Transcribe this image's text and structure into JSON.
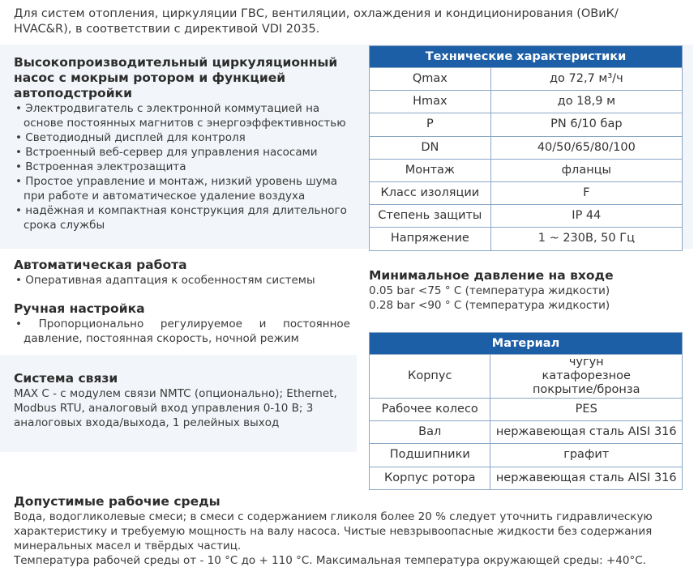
{
  "intro": "Для систем отопления, циркуляции ГВС, вентиляции, охлаждения и кондиционирования (ОВиК/ HVAC&R), в соответствии с директивой VDI 2035.",
  "features": {
    "title": "Высокопроизводительный циркуляционный насос с мокрым ротором и функцией автоподстройки",
    "items": [
      "Электродвигатель с электронной коммутацией на основе постоянных магнитов с энергоэффективностью",
      "Светодиодный дисплей для контроля",
      "Встроенный веб-сервер для управления насосами",
      "Встроенная электрозащита",
      "Простое управление и монтаж, низкий уровень шума при работе и автоматическое удаление воздуха",
      "надёжная и компактная конструкция для длительного срока службы"
    ]
  },
  "auto": {
    "title": "Автоматическая работа",
    "items": [
      "Оперативная адаптация к особенностям системы"
    ]
  },
  "manual": {
    "title": "Ручная настройка",
    "items": [
      "Пропорционально регулируемое и постоянное давление, постоянная скорость, ночной режим"
    ]
  },
  "comm": {
    "title": "Система связи",
    "text": "MAX C - с модулем связи NMTC (опционально); Ethernet, Modbus RTU, аналоговый вход управления 0-10 В; 3 аналоговых входа/выхода, 1 релейных выход"
  },
  "media": {
    "title": "Допустимые рабочие среды",
    "text": "Вода, водогликолевые смеси; в смеси с содержанием гликоля более 20 % следует уточнить гидравлическую характеристику и требуемую мощность на валу насоса. Чистые невзрывоопасные жидкости без содержания минеральных масел и твёрдых частиц.",
    "temp": "Температура рабочей среды от - 10 °C до + 110 °C. Максимальная температура окружающей среды: +40°C."
  },
  "tech": {
    "title": "Технические характеристики",
    "rows": [
      [
        "Qmax",
        "до 72,7 м³/ч"
      ],
      [
        "Hmax",
        "до 18,9 м"
      ],
      [
        "P",
        "PN 6/10 бар"
      ],
      [
        "DN",
        "40/50/65/80/100"
      ],
      [
        "Монтаж",
        "фланцы"
      ],
      [
        "Класс изоляции",
        "F"
      ],
      [
        "Степень защиты",
        "IP 44"
      ],
      [
        "Напряжение",
        "1 ~ 230В, 50 Гц"
      ]
    ]
  },
  "pressure": {
    "title": "Минимальное давление на входе",
    "lines": [
      "0.05 bar <75 ° C (температура жидкости)",
      "0.28 bar <90 ° C (температура жидкости)"
    ]
  },
  "material": {
    "title": "Материал",
    "rows": [
      [
        "Корпус",
        "чугун катафорезное покрытие/бронза"
      ],
      [
        "Рабочее колесо",
        "PES"
      ],
      [
        "Вал",
        "нержавеющая сталь AISI 316"
      ],
      [
        "Подшипники",
        "графит"
      ],
      [
        "Корпус ротора",
        "нержавеющая сталь AISI 316"
      ]
    ]
  },
  "colors": {
    "header": "#1c5fa6",
    "panel": "#f2f5f9"
  }
}
